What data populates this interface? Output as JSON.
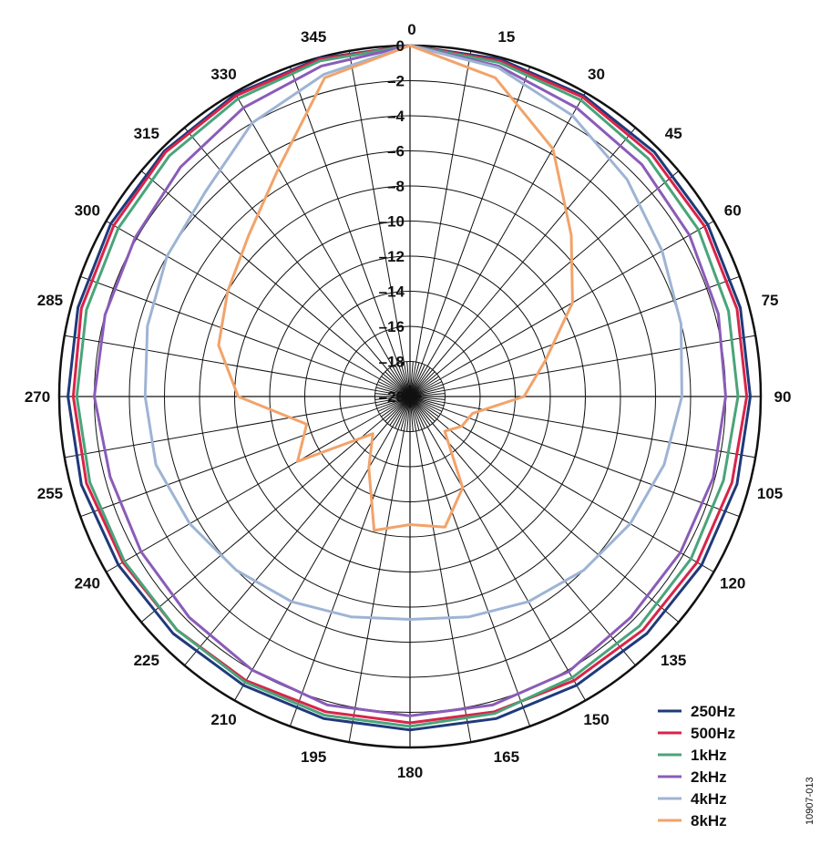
{
  "chart_data": {
    "type": "polar-line",
    "angle_ticks": [
      "0",
      "15",
      "30",
      "45",
      "60",
      "75",
      "90",
      "105",
      "120",
      "135",
      "150",
      "165",
      "180",
      "195",
      "210",
      "225",
      "240",
      "255",
      "270",
      "285",
      "300",
      "315",
      "330",
      "345"
    ],
    "radial_ticks": [
      "0",
      "–2",
      "–4",
      "–6",
      "–8",
      "–10",
      "–12",
      "–14",
      "–16",
      "–18",
      "–20"
    ],
    "rlim": [
      -20,
      0
    ],
    "angles": [
      0,
      15,
      30,
      45,
      60,
      75,
      90,
      105,
      120,
      135,
      150,
      165,
      180,
      195,
      210,
      225,
      240,
      255,
      270,
      285,
      300,
      315,
      330,
      345
    ],
    "grid": true,
    "legend_position": "bottom-right",
    "series": [
      {
        "name": "250Hz",
        "color": "#1f3a7a",
        "values": [
          0,
          -0.1,
          -0.2,
          -0.3,
          -0.4,
          -0.5,
          -0.6,
          -0.7,
          -0.8,
          -0.9,
          -1.0,
          -1.0,
          -1.0,
          -1.0,
          -1.0,
          -0.9,
          -0.8,
          -0.6,
          -0.5,
          -0.4,
          -0.3,
          -0.2,
          -0.1,
          -0.05
        ]
      },
      {
        "name": "500Hz",
        "color": "#d9244a",
        "values": [
          0,
          -0.2,
          -0.3,
          -0.5,
          -0.6,
          -0.7,
          -0.8,
          -1.0,
          -1.1,
          -1.2,
          -1.3,
          -1.4,
          -1.4,
          -1.4,
          -1.3,
          -1.2,
          -1.1,
          -0.9,
          -0.8,
          -0.6,
          -0.5,
          -0.3,
          -0.2,
          -0.1
        ]
      },
      {
        "name": "1kHz",
        "color": "#4aa47a",
        "values": [
          0,
          -0.3,
          -0.5,
          -0.8,
          -1.0,
          -1.2,
          -1.3,
          -1.5,
          -1.5,
          -1.5,
          -1.5,
          -1.3,
          -1.2,
          -1.2,
          -1.2,
          -1.2,
          -1.2,
          -1.1,
          -1.0,
          -0.9,
          -0.8,
          -0.6,
          -0.4,
          -0.2
        ]
      },
      {
        "name": "2kHz",
        "color": "#8a5cb8",
        "values": [
          0,
          -0.5,
          -1.0,
          -1.3,
          -1.6,
          -1.8,
          -2.0,
          -2.1,
          -2.2,
          -2.2,
          -1.9,
          -1.8,
          -1.8,
          -1.8,
          -2.0,
          -2.2,
          -2.3,
          -2.3,
          -2.0,
          -2.0,
          -1.9,
          -1.5,
          -1.0,
          -0.5
        ]
      },
      {
        "name": "4kHz",
        "color": "#9eb4d4",
        "values": [
          0,
          -0.6,
          -1.5,
          -2.5,
          -3.4,
          -4.0,
          -4.5,
          -5.0,
          -5.5,
          -6.0,
          -6.5,
          -7.0,
          -7.3,
          -7.0,
          -6.5,
          -6.0,
          -5.5,
          -5.0,
          -4.9,
          -4.5,
          -4.0,
          -3.5,
          -2.0,
          -1.0
        ]
      },
      {
        "name": "8kHz",
        "color": "#f2a36a",
        "values": [
          0,
          -1.2,
          -3.7,
          -7.0,
          -9.3,
          -12.0,
          -13.5,
          -16.3,
          -16.6,
          -17.2,
          -14.0,
          -12.3,
          -12.7,
          -12.1,
          -15.3,
          -17.0,
          -12.6,
          -13.9,
          -10.2,
          -8.7,
          -8.0,
          -7.0,
          -5.0,
          -1.2
        ]
      }
    ]
  },
  "figure_id": "10907-013"
}
